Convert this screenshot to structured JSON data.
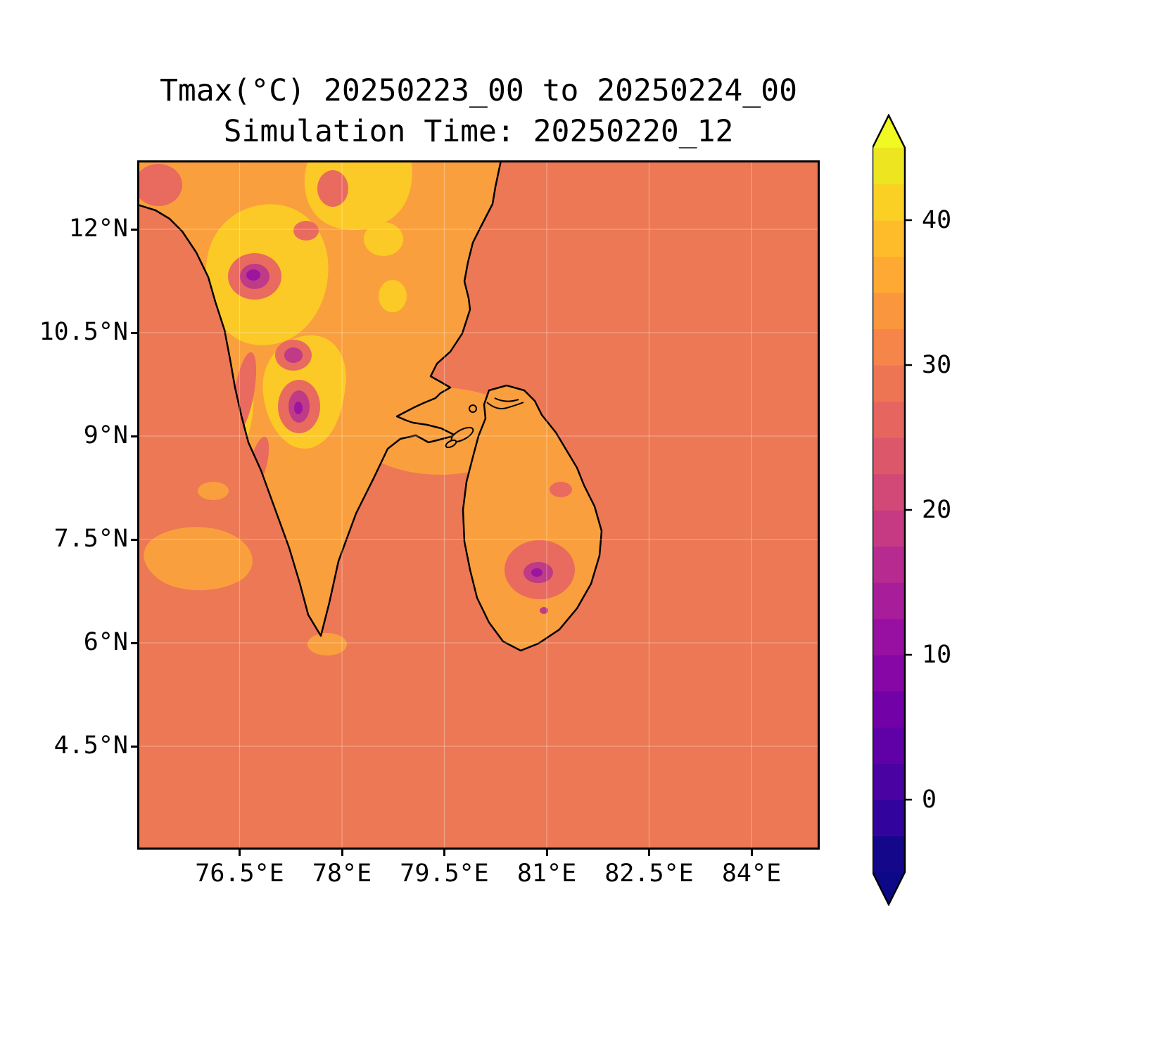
{
  "chart_data": {
    "type": "heatmap",
    "title": "Tmax(°C) 20250223_00 to 20250224_00",
    "subtitle": "Simulation Time: 20250220_12",
    "variable": "Tmax",
    "units": "°C",
    "valid_period": "20250223_00 to 20250224_00",
    "simulation_time": "20250220_12",
    "x_ticks": [
      "76.5°E",
      "78°E",
      "79.5°E",
      "81°E",
      "82.5°E",
      "84°E"
    ],
    "x_tick_values": [
      76.5,
      78,
      79.5,
      81,
      82.5,
      84
    ],
    "xlim": [
      75,
      85
    ],
    "y_ticks": [
      "12°N",
      "10.5°N",
      "9°N",
      "7.5°N",
      "6°N",
      "4.5°N"
    ],
    "y_tick_values": [
      12,
      10.5,
      9,
      7.5,
      6,
      4.5
    ],
    "ylim": [
      3,
      13
    ],
    "grid": true,
    "legend_position": "right-colorbar",
    "colorbar": {
      "ticks": [
        "0",
        "10",
        "20",
        "30",
        "40"
      ],
      "tick_values": [
        0,
        10,
        20,
        30,
        40
      ],
      "vmin": -5,
      "vmax": 45,
      "band_step_c": 2.5,
      "band_colors": [
        "#150789",
        "#33049d",
        "#4a02a3",
        "#5f01a6",
        "#7301a8",
        "#8606a6",
        "#9810a1",
        "#a81d9a",
        "#b72b90",
        "#c53a83",
        "#d24877",
        "#dd576b",
        "#e6655f",
        "#ee7553",
        "#f58548",
        "#fa963e",
        "#fda934",
        "#febc2a",
        "#fbd024",
        "#ece51f"
      ],
      "extend_under_color": "#0d0887",
      "extend_over_color": "#f0f921"
    },
    "colors": {
      "ocean": "#ec7855",
      "land_orange": "#fa9f3d",
      "hot_yellow": "#fcca26",
      "warm_salmon": "#e96a5e",
      "cool_magenta": "#bf3a87",
      "cold_purple": "#9c15a0",
      "coastline": "#000000",
      "grid": "#ffffff"
    },
    "features": [
      {
        "region": "surrounding-ocean",
        "approx_tmax_c": 29
      },
      {
        "region": "southern-india-interior",
        "approx_tmax_c": 34
      },
      {
        "region": "india-hot-patches",
        "approx_tmax_c": 38
      },
      {
        "region": "western-ghats-highlands",
        "approx_tmax_c": 14
      },
      {
        "region": "sri-lanka-lowlands",
        "approx_tmax_c": 33
      },
      {
        "region": "sri-lanka-central-highlands",
        "approx_tmax_c": 16
      }
    ]
  }
}
